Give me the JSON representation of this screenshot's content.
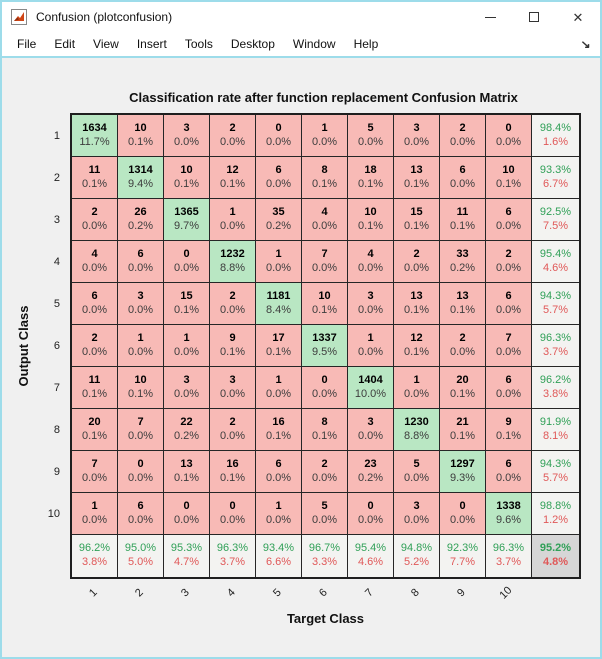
{
  "window": {
    "title": "Confusion (plotconfusion)",
    "icons": {
      "app": "matlab-logo",
      "minimize": "minimize-line",
      "maximize": "maximize-square",
      "close": "✕",
      "dock": "↘"
    }
  },
  "menu": {
    "items": [
      "File",
      "Edit",
      "View",
      "Insert",
      "Tools",
      "Desktop",
      "Window",
      "Help"
    ]
  },
  "chart_data": {
    "type": "heatmap",
    "title": "Classification rate after function replacement Confusion Matrix",
    "xlabel": "Target Class",
    "ylabel": "Output Class",
    "classes": [
      "1",
      "2",
      "3",
      "4",
      "5",
      "6",
      "7",
      "8",
      "9",
      "10"
    ],
    "counts": [
      [
        1634,
        10,
        3,
        2,
        0,
        1,
        5,
        3,
        2,
        0
      ],
      [
        11,
        1314,
        10,
        12,
        6,
        8,
        18,
        13,
        6,
        10
      ],
      [
        2,
        26,
        1365,
        1,
        35,
        4,
        10,
        15,
        11,
        6
      ],
      [
        4,
        6,
        0,
        1232,
        1,
        7,
        4,
        2,
        33,
        2
      ],
      [
        6,
        3,
        15,
        2,
        1181,
        10,
        3,
        13,
        13,
        6
      ],
      [
        2,
        1,
        1,
        9,
        17,
        1337,
        1,
        12,
        2,
        7
      ],
      [
        11,
        10,
        3,
        3,
        1,
        0,
        1404,
        1,
        20,
        6
      ],
      [
        20,
        7,
        22,
        2,
        16,
        8,
        3,
        1230,
        21,
        9
      ],
      [
        7,
        0,
        13,
        16,
        6,
        2,
        23,
        5,
        1297,
        6
      ],
      [
        1,
        6,
        0,
        0,
        1,
        5,
        0,
        3,
        0,
        1338
      ]
    ],
    "cell_percents": [
      [
        "11.7%",
        "0.1%",
        "0.0%",
        "0.0%",
        "0.0%",
        "0.0%",
        "0.0%",
        "0.0%",
        "0.0%",
        "0.0%"
      ],
      [
        "0.1%",
        "9.4%",
        "0.1%",
        "0.1%",
        "0.0%",
        "0.1%",
        "0.1%",
        "0.1%",
        "0.0%",
        "0.1%"
      ],
      [
        "0.0%",
        "0.2%",
        "9.7%",
        "0.0%",
        "0.2%",
        "0.0%",
        "0.1%",
        "0.1%",
        "0.1%",
        "0.0%"
      ],
      [
        "0.0%",
        "0.0%",
        "0.0%",
        "8.8%",
        "0.0%",
        "0.0%",
        "0.0%",
        "0.0%",
        "0.2%",
        "0.0%"
      ],
      [
        "0.0%",
        "0.0%",
        "0.1%",
        "0.0%",
        "8.4%",
        "0.1%",
        "0.0%",
        "0.1%",
        "0.1%",
        "0.0%"
      ],
      [
        "0.0%",
        "0.0%",
        "0.0%",
        "0.1%",
        "0.1%",
        "9.5%",
        "0.0%",
        "0.1%",
        "0.0%",
        "0.0%"
      ],
      [
        "0.1%",
        "0.1%",
        "0.0%",
        "0.0%",
        "0.0%",
        "0.0%",
        "10.0%",
        "0.0%",
        "0.1%",
        "0.0%"
      ],
      [
        "0.1%",
        "0.0%",
        "0.2%",
        "0.0%",
        "0.1%",
        "0.1%",
        "0.0%",
        "8.8%",
        "0.1%",
        "0.1%"
      ],
      [
        "0.0%",
        "0.0%",
        "0.1%",
        "0.1%",
        "0.0%",
        "0.0%",
        "0.2%",
        "0.0%",
        "9.3%",
        "0.0%"
      ],
      [
        "0.0%",
        "0.0%",
        "0.0%",
        "0.0%",
        "0.0%",
        "0.0%",
        "0.0%",
        "0.0%",
        "0.0%",
        "9.6%"
      ]
    ],
    "row_summary": [
      {
        "good": "98.4%",
        "bad": "1.6%"
      },
      {
        "good": "93.3%",
        "bad": "6.7%"
      },
      {
        "good": "92.5%",
        "bad": "7.5%"
      },
      {
        "good": "95.4%",
        "bad": "4.6%"
      },
      {
        "good": "94.3%",
        "bad": "5.7%"
      },
      {
        "good": "96.3%",
        "bad": "3.7%"
      },
      {
        "good": "96.2%",
        "bad": "3.8%"
      },
      {
        "good": "91.9%",
        "bad": "8.1%"
      },
      {
        "good": "94.3%",
        "bad": "5.7%"
      },
      {
        "good": "98.8%",
        "bad": "1.2%"
      }
    ],
    "col_summary": [
      {
        "good": "96.2%",
        "bad": "3.8%"
      },
      {
        "good": "95.0%",
        "bad": "5.0%"
      },
      {
        "good": "95.3%",
        "bad": "4.7%"
      },
      {
        "good": "96.3%",
        "bad": "3.7%"
      },
      {
        "good": "93.4%",
        "bad": "6.6%"
      },
      {
        "good": "96.7%",
        "bad": "3.3%"
      },
      {
        "good": "95.4%",
        "bad": "4.6%"
      },
      {
        "good": "94.8%",
        "bad": "5.2%"
      },
      {
        "good": "92.3%",
        "bad": "7.7%"
      },
      {
        "good": "96.3%",
        "bad": "3.7%"
      }
    ],
    "overall": {
      "good": "95.2%",
      "bad": "4.8%"
    },
    "colors": {
      "diagonal_bg": "#b9e7c3",
      "offdiag_bg": "#f8bab6",
      "summary_bg": "#f3f3f1",
      "overall_bg": "#d6d6d6",
      "good_text": "#31a058",
      "bad_text": "#e05858",
      "frame": "#9ddcea"
    },
    "legend_position": "none",
    "grid": true
  }
}
